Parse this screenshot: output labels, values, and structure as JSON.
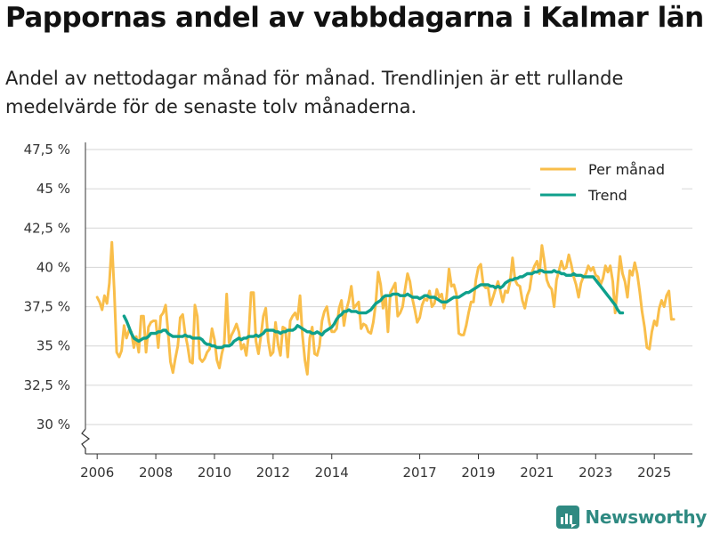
{
  "header": {
    "title": "Pappornas andel av vabbdagarna i Kalmar län",
    "subtitle": "Andel av nettodagar månad för månad. Trendlinjen är ett rullande medelvärde för de senaste tolv månaderna."
  },
  "brand": {
    "name": "Newsworthy",
    "icon": "newsworthy-logo-icon"
  },
  "colors": {
    "monthly": "#F9BE4A",
    "trend": "#0FA08C",
    "grid": "#d6d6d6",
    "axis": "#333333"
  },
  "chart_data": {
    "type": "line",
    "title": "Pappornas andel av vabbdagarna i Kalmar län",
    "xlabel": "",
    "ylabel": "",
    "ylim": [
      30,
      47.5
    ],
    "xlim": [
      2005.6,
      2026.3
    ],
    "y_ticks": [
      30,
      32.5,
      35,
      37.5,
      40,
      42.5,
      45,
      47.5
    ],
    "y_tick_labels": [
      "30 %",
      "32,5 %",
      "35 %",
      "37,5 %",
      "40 %",
      "42,5 %",
      "45 %",
      "47,5 %"
    ],
    "x_ticks": [
      2006,
      2008,
      2010,
      2012,
      2014,
      2017,
      2019,
      2021,
      2023,
      2025
    ],
    "x_tick_labels": [
      "2006",
      "2008",
      "2010",
      "2012",
      "2014",
      "2017",
      "2019",
      "2021",
      "2023",
      "2025"
    ],
    "grid": true,
    "legend_position": "top-right",
    "axis_break": true,
    "series": [
      {
        "name": "Per månad",
        "x_start": 2006.0,
        "step_months": 1,
        "values": [
          38.1,
          37.8,
          37.3,
          38.2,
          37.7,
          39.0,
          41.6,
          38.5,
          34.6,
          34.3,
          34.7,
          36.3,
          35.5,
          36.0,
          35.9,
          34.9,
          35.6,
          34.6,
          36.9,
          36.9,
          34.6,
          36.2,
          36.5,
          36.6,
          36.6,
          34.9,
          36.9,
          37.1,
          37.6,
          35.9,
          34.0,
          33.3,
          34.2,
          35.0,
          36.8,
          37.0,
          35.8,
          35.0,
          34.0,
          33.9,
          37.6,
          36.9,
          34.2,
          34.0,
          34.2,
          34.6,
          34.8,
          36.1,
          35.4,
          34.1,
          33.6,
          34.5,
          35.1,
          38.3,
          35.2,
          35.7,
          36.0,
          36.4,
          35.9,
          34.8,
          35.1,
          34.4,
          35.7,
          38.4,
          38.4,
          35.3,
          34.5,
          35.6,
          36.9,
          37.4,
          35.3,
          34.4,
          34.6,
          36.5,
          35.1,
          34.4,
          36.2,
          36.1,
          34.3,
          36.6,
          36.9,
          37.1,
          36.7,
          38.2,
          35.7,
          34.1,
          33.2,
          35.5,
          36.2,
          34.5,
          34.4,
          35.0,
          36.6,
          37.2,
          37.5,
          36.5,
          35.9,
          35.9,
          36.1,
          37.4,
          37.9,
          36.3,
          37.3,
          37.9,
          38.8,
          37.4,
          37.6,
          37.8,
          36.1,
          36.4,
          36.3,
          35.9,
          35.8,
          36.5,
          37.7,
          39.7,
          38.9,
          37.4,
          38.2,
          35.9,
          38.4,
          38.7,
          39.0,
          36.9,
          37.1,
          37.5,
          38.6,
          39.6,
          39.1,
          38.0,
          37.3,
          36.5,
          36.8,
          37.6,
          38.0,
          37.9,
          38.5,
          37.5,
          37.7,
          38.6,
          38.1,
          38.3,
          37.4,
          38.1,
          39.9,
          38.8,
          38.9,
          38.3,
          35.8,
          35.7,
          35.7,
          36.3,
          37.1,
          37.8,
          37.8,
          39.2,
          40.0,
          40.2,
          38.9,
          38.7,
          38.7,
          37.6,
          38.1,
          38.6,
          39.1,
          38.5,
          37.8,
          38.5,
          38.4,
          39.1,
          40.6,
          39.2,
          38.9,
          38.8,
          37.9,
          37.4,
          38.2,
          38.6,
          39.7,
          40.1,
          40.4,
          39.6,
          41.4,
          40.4,
          39.2,
          38.8,
          38.6,
          37.5,
          39.2,
          39.8,
          40.4,
          39.9,
          40.0,
          40.8,
          40.2,
          39.4,
          38.9,
          38.1,
          39.0,
          39.4,
          39.6,
          40.1,
          39.8,
          40.0,
          39.5,
          39.4,
          38.9,
          39.3,
          40.1,
          39.7,
          40.1,
          39.1,
          37.1,
          38.9,
          40.7,
          39.6,
          39.1,
          38.1,
          39.8,
          39.5,
          40.3,
          39.6,
          38.5,
          37.2,
          36.2,
          34.9,
          34.8,
          35.9,
          36.6,
          36.3,
          37.4,
          37.9,
          37.5,
          38.2,
          38.5,
          36.7,
          36.7
        ]
      },
      {
        "name": "Trend",
        "x_start": 2006.917,
        "step_months": 1,
        "values": [
          36.9,
          36.6,
          36.2,
          35.8,
          35.5,
          35.4,
          35.3,
          35.4,
          35.5,
          35.5,
          35.6,
          35.8,
          35.8,
          35.8,
          35.9,
          35.9,
          36.0,
          36.0,
          35.8,
          35.7,
          35.6,
          35.6,
          35.6,
          35.6,
          35.6,
          35.7,
          35.6,
          35.6,
          35.5,
          35.5,
          35.5,
          35.5,
          35.4,
          35.2,
          35.1,
          35.1,
          35.0,
          35.0,
          34.9,
          34.9,
          34.9,
          35.0,
          35.0,
          35.0,
          35.1,
          35.3,
          35.4,
          35.5,
          35.4,
          35.5,
          35.5,
          35.6,
          35.6,
          35.6,
          35.7,
          35.6,
          35.7,
          35.8,
          36.0,
          36.0,
          36.0,
          36.0,
          35.9,
          35.9,
          35.8,
          35.9,
          35.9,
          36.0,
          36.0,
          36.0,
          36.1,
          36.3,
          36.2,
          36.1,
          36.0,
          35.9,
          35.9,
          35.8,
          35.8,
          35.9,
          35.8,
          35.7,
          35.9,
          36.0,
          36.1,
          36.2,
          36.4,
          36.7,
          36.9,
          37.0,
          37.2,
          37.2,
          37.3,
          37.2,
          37.2,
          37.2,
          37.1,
          37.1,
          37.1,
          37.1,
          37.2,
          37.3,
          37.5,
          37.7,
          37.8,
          37.9,
          38.1,
          38.2,
          38.2,
          38.2,
          38.3,
          38.3,
          38.3,
          38.2,
          38.2,
          38.2,
          38.3,
          38.2,
          38.1,
          38.1,
          38.1,
          38.0,
          38.1,
          38.2,
          38.2,
          38.1,
          38.1,
          38.1,
          38.0,
          37.9,
          37.8,
          37.8,
          37.8,
          37.9,
          38.0,
          38.1,
          38.1,
          38.1,
          38.2,
          38.3,
          38.4,
          38.4,
          38.5,
          38.6,
          38.7,
          38.8,
          38.9,
          38.9,
          38.9,
          38.9,
          38.8,
          38.8,
          38.7,
          38.8,
          38.7,
          38.8,
          39.0,
          39.1,
          39.2,
          39.2,
          39.3,
          39.3,
          39.4,
          39.4,
          39.5,
          39.6,
          39.6,
          39.6,
          39.7,
          39.7,
          39.8,
          39.8,
          39.7,
          39.7,
          39.7,
          39.7,
          39.8,
          39.7,
          39.7,
          39.6,
          39.6,
          39.5,
          39.5,
          39.5,
          39.6,
          39.5,
          39.5,
          39.5,
          39.4,
          39.4,
          39.4,
          39.4,
          39.4,
          39.2,
          39.0,
          38.8,
          38.6,
          38.4,
          38.2,
          38.0,
          37.8,
          37.6,
          37.3,
          37.1,
          37.1
        ]
      }
    ]
  }
}
